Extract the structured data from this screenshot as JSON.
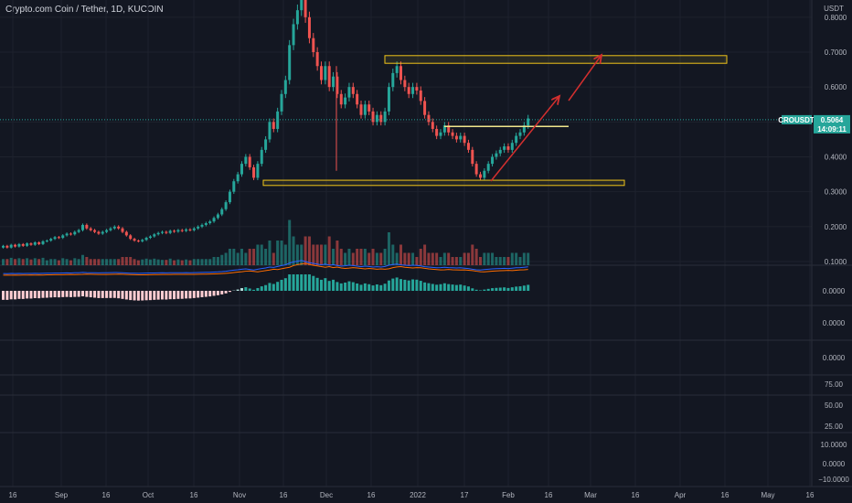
{
  "title": "Crypto.com Coin / Tether, 1D, KUCOIN",
  "chart_data": {
    "type": "candlestick",
    "symbol": "CROUSDT",
    "last_price": "0.5064",
    "countdown": "14:09:11",
    "currency": "USDT",
    "price_ticks": [
      "0.8000",
      "0.7000",
      "0.6000",
      "0.5000",
      "0.4000",
      "0.3000",
      "0.2000",
      "0.1000"
    ],
    "x_ticks": [
      "16",
      "Sep",
      "16",
      "Oct",
      "16",
      "Nov",
      "16",
      "Dec",
      "16",
      "2022",
      "17",
      "Feb",
      "16",
      "Mar",
      "16",
      "Apr",
      "16",
      "May",
      "16"
    ],
    "macd_tick": "0.0000",
    "pane3_tick": "0.0000",
    "pane4_tick": "0.0000",
    "rsi_ticks": [
      "75.00",
      "50.00",
      "25.00"
    ],
    "pane6_ticks": [
      "10.0000",
      "0.0000",
      "−10.0000"
    ],
    "resistance_zone": [
      0.668,
      0.69
    ],
    "support_zone": [
      0.318,
      0.333
    ],
    "breakout_line": 0.487,
    "ohlc_points": [
      [
        0.14,
        0.145
      ],
      [
        0.145,
        0.14
      ],
      [
        0.14,
        0.148
      ],
      [
        0.148,
        0.143
      ],
      [
        0.143,
        0.15
      ],
      [
        0.15,
        0.145
      ],
      [
        0.145,
        0.152
      ],
      [
        0.152,
        0.148
      ],
      [
        0.148,
        0.155
      ],
      [
        0.155,
        0.15
      ],
      [
        0.15,
        0.158
      ],
      [
        0.158,
        0.16
      ],
      [
        0.16,
        0.165
      ],
      [
        0.165,
        0.17
      ],
      [
        0.17,
        0.168
      ],
      [
        0.168,
        0.175
      ],
      [
        0.175,
        0.18
      ],
      [
        0.18,
        0.178
      ],
      [
        0.178,
        0.185
      ],
      [
        0.185,
        0.19
      ],
      [
        0.19,
        0.205
      ],
      [
        0.205,
        0.195
      ],
      [
        0.195,
        0.19
      ],
      [
        0.19,
        0.185
      ],
      [
        0.185,
        0.18
      ],
      [
        0.18,
        0.185
      ],
      [
        0.185,
        0.19
      ],
      [
        0.19,
        0.195
      ],
      [
        0.195,
        0.2
      ],
      [
        0.2,
        0.195
      ],
      [
        0.195,
        0.185
      ],
      [
        0.185,
        0.175
      ],
      [
        0.175,
        0.165
      ],
      [
        0.165,
        0.16
      ],
      [
        0.16,
        0.158
      ],
      [
        0.158,
        0.162
      ],
      [
        0.162,
        0.168
      ],
      [
        0.168,
        0.172
      ],
      [
        0.172,
        0.178
      ],
      [
        0.178,
        0.182
      ],
      [
        0.182,
        0.185
      ],
      [
        0.185,
        0.182
      ],
      [
        0.182,
        0.188
      ],
      [
        0.188,
        0.186
      ],
      [
        0.186,
        0.19
      ],
      [
        0.19,
        0.188
      ],
      [
        0.188,
        0.192
      ],
      [
        0.192,
        0.19
      ],
      [
        0.19,
        0.195
      ],
      [
        0.195,
        0.2
      ],
      [
        0.2,
        0.205
      ],
      [
        0.205,
        0.21
      ],
      [
        0.21,
        0.215
      ],
      [
        0.215,
        0.225
      ],
      [
        0.225,
        0.235
      ],
      [
        0.235,
        0.25
      ],
      [
        0.25,
        0.27
      ],
      [
        0.27,
        0.3
      ],
      [
        0.3,
        0.33
      ],
      [
        0.33,
        0.35
      ],
      [
        0.35,
        0.38
      ],
      [
        0.38,
        0.4
      ],
      [
        0.4,
        0.37
      ],
      [
        0.37,
        0.34
      ],
      [
        0.34,
        0.38
      ],
      [
        0.38,
        0.42
      ],
      [
        0.42,
        0.45
      ],
      [
        0.45,
        0.5
      ],
      [
        0.5,
        0.48
      ],
      [
        0.48,
        0.53
      ],
      [
        0.53,
        0.58
      ],
      [
        0.58,
        0.62
      ],
      [
        0.62,
        0.72
      ],
      [
        0.72,
        0.78
      ],
      [
        0.78,
        0.82
      ],
      [
        0.82,
        0.86
      ],
      [
        0.86,
        0.8
      ],
      [
        0.8,
        0.74
      ],
      [
        0.74,
        0.7
      ],
      [
        0.7,
        0.66
      ],
      [
        0.66,
        0.62
      ],
      [
        0.62,
        0.66
      ],
      [
        0.66,
        0.6
      ],
      [
        0.6,
        0.63
      ],
      [
        0.63,
        0.58
      ],
      [
        0.58,
        0.55
      ],
      [
        0.55,
        0.57
      ],
      [
        0.57,
        0.6
      ],
      [
        0.6,
        0.58
      ],
      [
        0.58,
        0.55
      ],
      [
        0.55,
        0.52
      ],
      [
        0.52,
        0.55
      ],
      [
        0.55,
        0.53
      ],
      [
        0.53,
        0.5
      ],
      [
        0.5,
        0.52
      ],
      [
        0.52,
        0.5
      ],
      [
        0.5,
        0.53
      ],
      [
        0.53,
        0.6
      ],
      [
        0.6,
        0.64
      ],
      [
        0.64,
        0.66
      ],
      [
        0.66,
        0.62
      ],
      [
        0.62,
        0.6
      ],
      [
        0.6,
        0.58
      ],
      [
        0.58,
        0.6
      ],
      [
        0.6,
        0.59
      ],
      [
        0.59,
        0.56
      ],
      [
        0.56,
        0.52
      ],
      [
        0.52,
        0.5
      ],
      [
        0.5,
        0.48
      ],
      [
        0.48,
        0.46
      ],
      [
        0.46,
        0.47
      ],
      [
        0.47,
        0.49
      ],
      [
        0.49,
        0.47
      ],
      [
        0.47,
        0.46
      ],
      [
        0.46,
        0.45
      ],
      [
        0.45,
        0.46
      ],
      [
        0.46,
        0.44
      ],
      [
        0.44,
        0.42
      ],
      [
        0.42,
        0.38
      ],
      [
        0.38,
        0.35
      ],
      [
        0.35,
        0.34
      ],
      [
        0.34,
        0.36
      ],
      [
        0.36,
        0.38
      ],
      [
        0.38,
        0.4
      ],
      [
        0.4,
        0.41
      ],
      [
        0.41,
        0.42
      ],
      [
        0.42,
        0.43
      ],
      [
        0.43,
        0.42
      ],
      [
        0.42,
        0.44
      ],
      [
        0.44,
        0.46
      ],
      [
        0.46,
        0.47
      ],
      [
        0.47,
        0.49
      ],
      [
        0.49,
        0.51
      ]
    ]
  }
}
